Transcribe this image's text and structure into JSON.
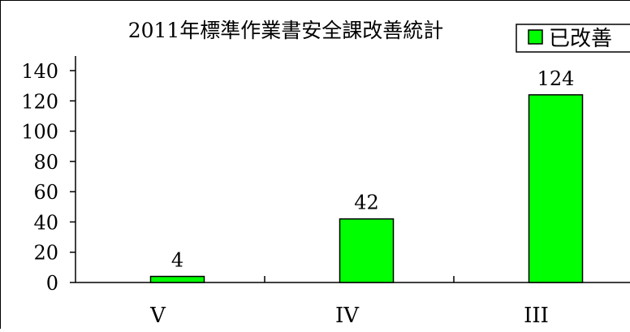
{
  "chart_data": {
    "type": "bar",
    "title": "2011年標準作業書安全課改善統計",
    "categories": [
      "V",
      "IV",
      "III"
    ],
    "series": [
      {
        "name": "已改善",
        "values": [
          4,
          42,
          124
        ],
        "color": "#00ff00"
      }
    ],
    "ylim": [
      0,
      140
    ],
    "yticks": [
      0,
      20,
      40,
      60,
      80,
      100,
      120,
      140
    ],
    "xlabel": "",
    "ylabel": "",
    "legend": "top-right",
    "grid": false
  }
}
